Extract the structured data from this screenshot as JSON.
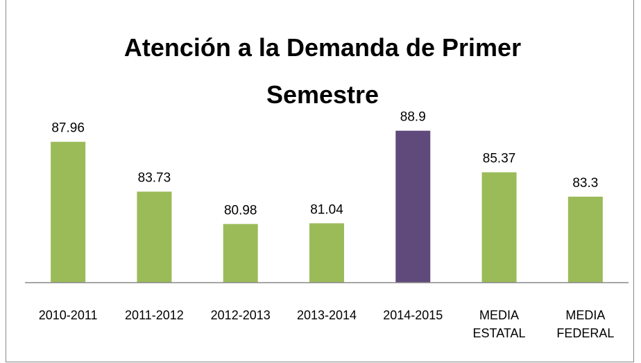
{
  "chart_data": {
    "type": "bar",
    "title": "Atención a la Demanda de Primer\nSemestre",
    "categories": [
      "2010-2011",
      "2011-2012",
      "2012-2013",
      "2013-2014",
      "2014-2015",
      "MEDIA\nESTATAL",
      "MEDIA\nFEDERAL"
    ],
    "values": [
      87.96,
      83.73,
      80.98,
      81.04,
      88.9,
      85.37,
      83.3
    ],
    "colors": [
      "#9bbb59",
      "#9bbb59",
      "#9bbb59",
      "#9bbb59",
      "#604a7b",
      "#9bbb59",
      "#9bbb59"
    ],
    "ylim": [
      76,
      90
    ]
  }
}
